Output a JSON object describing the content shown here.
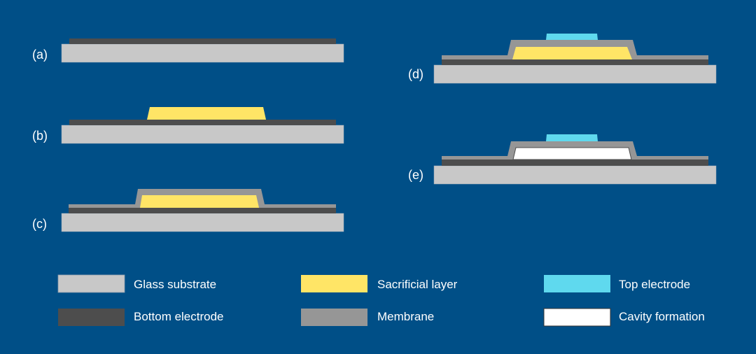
{
  "colors": {
    "background": "#004f87",
    "glass_substrate": "#c8c8c8",
    "bottom_electrode": "#4d4d4d",
    "sacrificial_layer": "#ffe566",
    "membrane": "#969696",
    "top_electrode": "#5fd9ee",
    "cavity": "#ffffff"
  },
  "steps": [
    {
      "label": "(a)"
    },
    {
      "label": "(b)"
    },
    {
      "label": "(c)"
    },
    {
      "label": "(d)"
    },
    {
      "label": "(e)"
    }
  ],
  "legend": [
    {
      "label": "Glass substrate",
      "color": "#c8c8c8"
    },
    {
      "label": "Bottom electrode",
      "color": "#4d4d4d"
    },
    {
      "label": "Sacrificial layer",
      "color": "#ffe566"
    },
    {
      "label": "Membrane",
      "color": "#969696"
    },
    {
      "label": "Top electrode",
      "color": "#5fd9ee"
    },
    {
      "label": "Cavity formation",
      "color": "#ffffff"
    }
  ]
}
